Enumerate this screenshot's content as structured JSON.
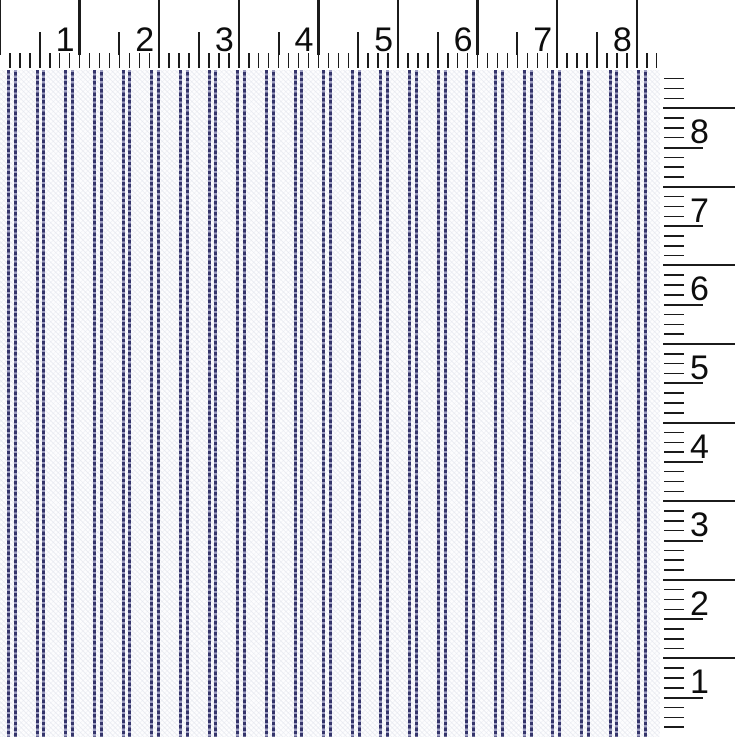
{
  "top_ruler": {
    "orientation": "horizontal",
    "numbers": [
      "1",
      "2",
      "3",
      "4",
      "5",
      "6",
      "7",
      "8"
    ]
  },
  "right_ruler": {
    "orientation": "vertical",
    "numbers": [
      "8",
      "7",
      "6",
      "5",
      "4",
      "3",
      "2",
      "1"
    ]
  },
  "fabric": {
    "stripe_groups": 23,
    "lines_per_group": 2
  },
  "colors": {
    "ruler_background": "#ffffff",
    "tick": "#1b1b1b",
    "number": "#0d0d0d",
    "fabric_base": "#fdfdfe",
    "weave_shadow": "#e3e5ee",
    "stripe_dark": "#34346a",
    "stripe_light": "#9b9bbf"
  }
}
